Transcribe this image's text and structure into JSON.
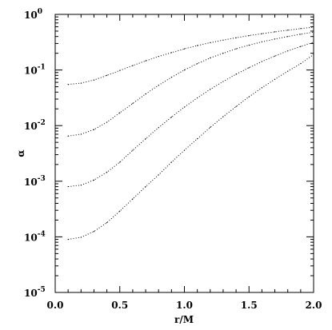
{
  "chart_data": {
    "type": "line",
    "title": "",
    "xlabel": "r/M",
    "ylabel": "α",
    "xlim": [
      0.0,
      2.0
    ],
    "ylim": [
      1e-05,
      1
    ],
    "yscale": "log",
    "grid": false,
    "line_style": "dotted",
    "x_ticks": [
      {
        "value": 0.0,
        "label": "0.0"
      },
      {
        "value": 0.5,
        "label": "0.5"
      },
      {
        "value": 1.0,
        "label": "1.0"
      },
      {
        "value": 1.5,
        "label": "1.5"
      },
      {
        "value": 2.0,
        "label": "2.0"
      }
    ],
    "y_ticks": [
      {
        "value": 1,
        "base": "10",
        "exp": "0"
      },
      {
        "value": 0.1,
        "base": "10",
        "exp": "-1"
      },
      {
        "value": 0.01,
        "base": "10",
        "exp": "-2"
      },
      {
        "value": 0.001,
        "base": "10",
        "exp": "-3"
      },
      {
        "value": 0.0001,
        "base": "10",
        "exp": "-4"
      },
      {
        "value": 1e-05,
        "base": "10",
        "exp": "-5"
      }
    ],
    "series": [
      {
        "x": [
          0.1,
          0.2,
          0.3,
          0.4,
          0.5,
          0.6,
          0.7,
          0.8,
          0.9,
          1.0,
          1.1,
          1.2,
          1.3,
          1.4,
          1.5,
          1.6,
          1.7,
          1.8,
          1.9,
          2.0
        ],
        "y": [
          0.055,
          0.058,
          0.066,
          0.08,
          0.098,
          0.12,
          0.146,
          0.175,
          0.205,
          0.24,
          0.275,
          0.31,
          0.345,
          0.38,
          0.415,
          0.45,
          0.485,
          0.52,
          0.555,
          0.59
        ]
      },
      {
        "x": [
          0.1,
          0.2,
          0.3,
          0.4,
          0.5,
          0.6,
          0.7,
          0.8,
          0.9,
          1.0,
          1.1,
          1.2,
          1.3,
          1.4,
          1.5,
          1.6,
          1.7,
          1.8,
          1.9,
          2.0
        ],
        "y": [
          0.0065,
          0.007,
          0.0085,
          0.0115,
          0.017,
          0.025,
          0.037,
          0.053,
          0.074,
          0.1,
          0.13,
          0.165,
          0.2,
          0.24,
          0.28,
          0.32,
          0.36,
          0.4,
          0.44,
          0.48
        ]
      },
      {
        "x": [
          0.1,
          0.2,
          0.3,
          0.4,
          0.5,
          0.6,
          0.7,
          0.8,
          0.9,
          1.0,
          1.1,
          1.2,
          1.3,
          1.4,
          1.5,
          1.6,
          1.7,
          1.8,
          1.9,
          2.0
        ],
        "y": [
          0.0008,
          0.00085,
          0.00105,
          0.00145,
          0.0022,
          0.0036,
          0.0058,
          0.0092,
          0.0142,
          0.0215,
          0.0315,
          0.045,
          0.062,
          0.084,
          0.11,
          0.142,
          0.178,
          0.22,
          0.265,
          0.315
        ]
      },
      {
        "x": [
          0.1,
          0.2,
          0.3,
          0.4,
          0.5,
          0.6,
          0.7,
          0.8,
          0.9,
          1.0,
          1.1,
          1.2,
          1.3,
          1.4,
          1.5,
          1.6,
          1.7,
          1.8,
          1.9,
          2.0
        ],
        "y": [
          9e-05,
          9.8e-05,
          0.000125,
          0.00018,
          0.00029,
          0.00048,
          0.0008,
          0.0013,
          0.0022,
          0.0036,
          0.0058,
          0.0093,
          0.0145,
          0.022,
          0.033,
          0.048,
          0.068,
          0.095,
          0.13,
          0.19
        ]
      }
    ]
  }
}
